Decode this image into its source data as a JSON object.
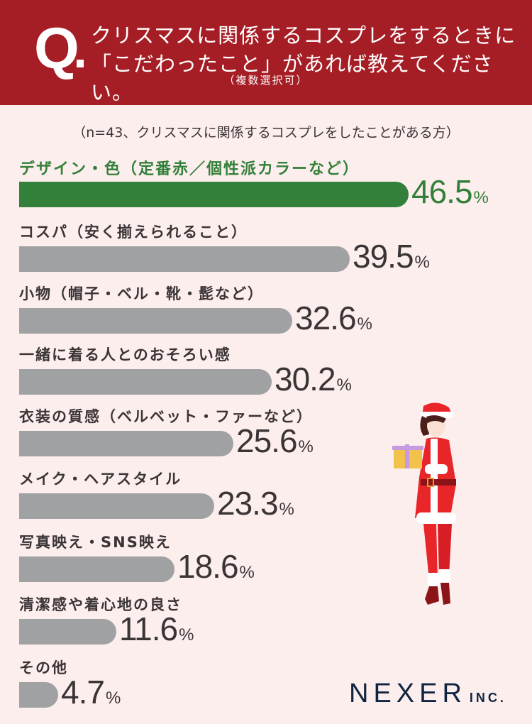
{
  "header": {
    "q_mark": "Q",
    "title_line1": "クリスマスに関係するコスプレをするときに",
    "title_line2": "「こだわったこと」があれば教えてください。",
    "note": "（複数選択可）",
    "background_color": "#A61E25"
  },
  "sample_note": "（n=43、クリスマスに関係するコスプレをしたことがある方）",
  "rows": [
    {
      "label": "デザイン・色（定番赤／個性派カラーなど）",
      "value": "46.5",
      "unit": "%"
    },
    {
      "label": "コスパ（安く揃えられること）",
      "value": "39.5",
      "unit": "%"
    },
    {
      "label": "小物（帽子・ベル・靴・髭など）",
      "value": "32.6",
      "unit": "%"
    },
    {
      "label": "一緒に着る人とのおそろい感",
      "value": "30.2",
      "unit": "%"
    },
    {
      "label": "衣装の質感（ベルベット・ファーなど）",
      "value": "25.6",
      "unit": "%"
    },
    {
      "label": "メイク・ヘアスタイル",
      "value": "23.3",
      "unit": "%"
    },
    {
      "label": "写真映え・SNS映え",
      "value": "18.6",
      "unit": "%"
    },
    {
      "label": "清潔感や着心地の良さ",
      "value": "11.6",
      "unit": "%"
    },
    {
      "label": "その他",
      "value": "4.7",
      "unit": "%"
    }
  ],
  "colors": {
    "highlight": "#33803A",
    "bar": "#A0A1A3",
    "text": "#3a3436",
    "background": "#FDEEEE"
  },
  "illustration": "santa-costume-woman-holding-gift",
  "logo": {
    "name": "NEXER",
    "suffix": "INC."
  },
  "chart_data": {
    "type": "bar",
    "orientation": "horizontal",
    "title": "クリスマスに関係するコスプレをするときに「こだわったこと」があれば教えてください。（複数選択可）",
    "subtitle": "（n=43、クリスマスに関係するコスプレをしたことがある方）",
    "categories": [
      "デザイン・色（定番赤／個性派カラーなど）",
      "コスパ（安く揃えられること）",
      "小物（帽子・ベル・靴・髭など）",
      "一緒に着る人とのおそろい感",
      "衣装の質感（ベルベット・ファーなど）",
      "メイク・ヘアスタイル",
      "写真映え・SNS映え",
      "清潔感や着心地の良さ",
      "その他"
    ],
    "values": [
      46.5,
      39.5,
      32.6,
      30.2,
      25.6,
      23.3,
      18.6,
      11.6,
      4.7
    ],
    "unit": "%",
    "xlabel": "",
    "ylabel": "",
    "grid": false,
    "legend": null,
    "highlighted_category": "デザイン・色（定番赤／個性派カラーなど）"
  }
}
